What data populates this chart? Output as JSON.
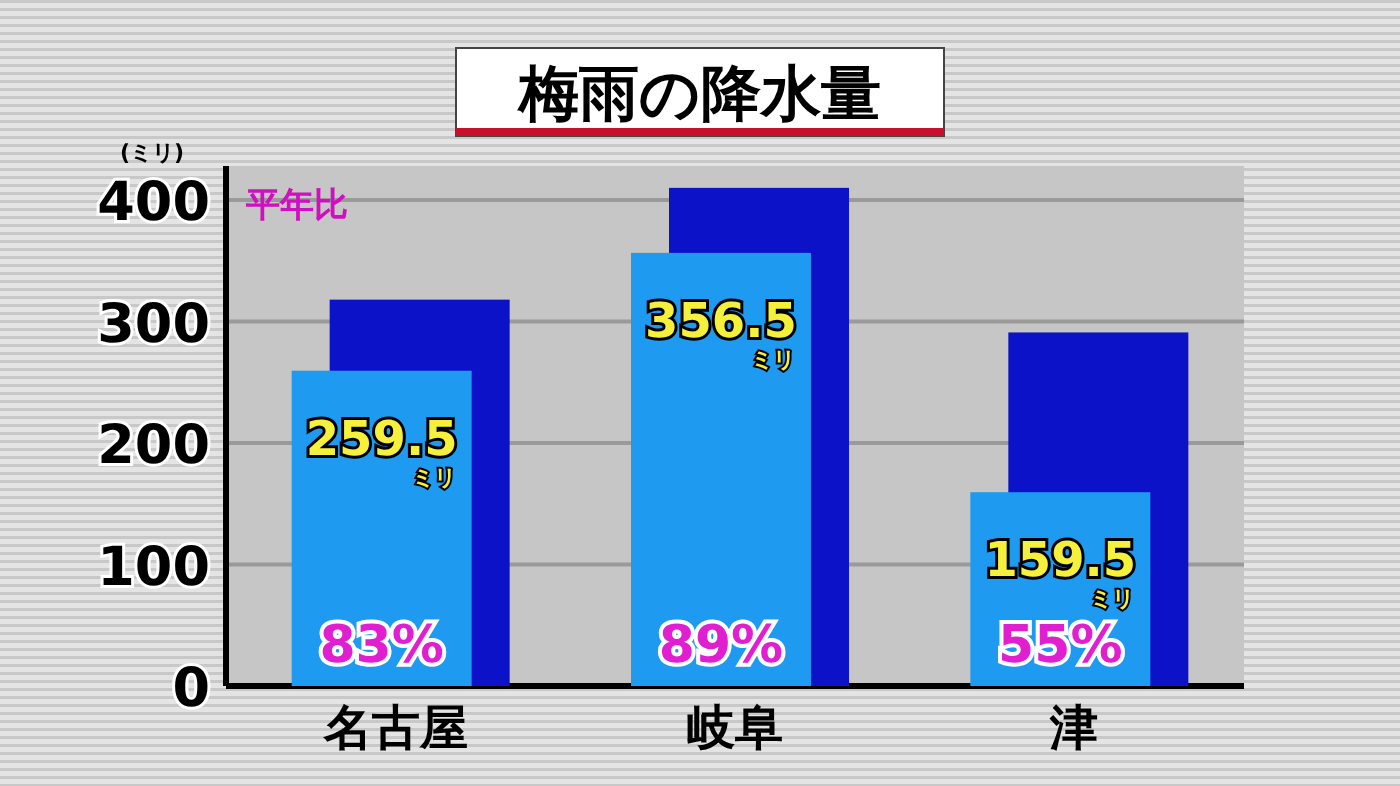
{
  "chart_data": {
    "type": "bar",
    "title": "梅雨の降水量",
    "ylabel": "(ミリ)",
    "categories": [
      "名古屋",
      "岐阜",
      "津"
    ],
    "series": [
      {
        "color": "#0c12c8",
        "values": [
          318,
          410,
          291
        ]
      },
      {
        "color": "#1e9af0",
        "values": [
          259.5,
          356.5,
          159.5
        ],
        "value_labels": [
          "259.5ミリ",
          "356.5ミリ",
          "159.5ミリ"
        ]
      }
    ],
    "ylim": [
      0,
      428
    ],
    "yticks": [
      0,
      100,
      200,
      300,
      400
    ],
    "grid": "y",
    "annotations": [
      "平年比",
      "83%",
      "89%",
      "55%"
    ]
  }
}
